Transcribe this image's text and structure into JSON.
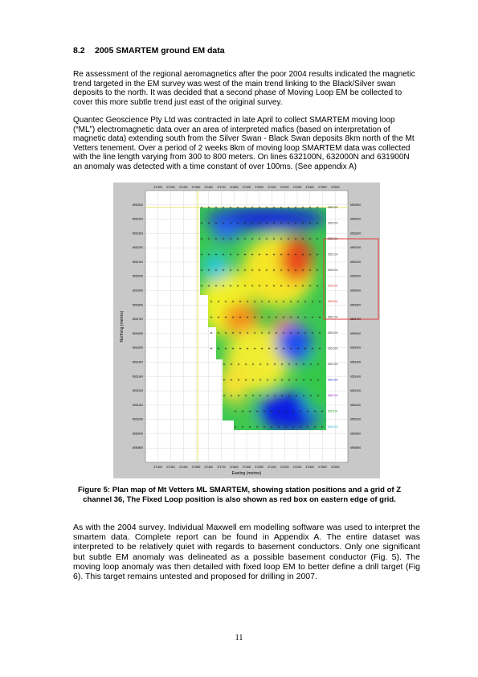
{
  "section": {
    "number": "8.2",
    "title": "2005 SMARTEM ground EM data"
  },
  "paragraphs": [
    "Re assessment of the regional aeromagnetics after the poor 2004 results indicated the magnetic trend targeted in the EM survey was west of the main trend linking to the Black/Silver swan deposits to the north.  It was decided that a second phase of Moving Loop EM be collected to cover this more subtle trend just east of the original survey.",
    "Quantec Geoscience Pty Ltd was contracted in late April to collect SMARTEM moving loop (“ML”) electromagnetic data  over an area of interpreted mafics (based on interpretation of magnetic data) extending south from the Silver Swan - Black Swan  deposits 8km north of the Mt Vetters tenement. Over a period of 2 weeks 8km of moving loop SMARTEM data was collected with the line length varying from 300 to 800 meters. On lines 632100N, 632000N and 631900N an anomaly was detected with a time constant of over 100ms. (See appendix A)",
    "As with the 2004 survey.  Individual Maxwell em modelling software was used to interpret the smartem data.  Complete report can be found in Appendix A.  The entire dataset was interpreted to be relatively quiet with regards to basement conductors. Only one significant but subtle EM anomaly was delineated as a possible basement conductor (Fig. 5).   The moving loop anomaly was then detailed with fixed loop EM to better define a drill target (Fig 6).  This target remains untested and proposed for drilling in 2007."
  ],
  "figure": {
    "caption": "Figure 5: Plan map of Mt Vetters ML SMARTEM, showing station positions and a grid of Z channel 36, The Fixed Loop position is also shown as red box on eastern edge of grid.",
    "xlabel": "Easting (metres)",
    "ylabel": "Northing (metres)",
    "x_ticks": [
      "371200",
      "371300",
      "371400",
      "371500",
      "371600",
      "371700",
      "371800",
      "371900",
      "372000",
      "372100",
      "372200",
      "372300",
      "372400",
      "372500",
      "372600"
    ],
    "y_ticks": [
      "6552500",
      "6552400",
      "6552300",
      "6552200",
      "6552100",
      "6552000",
      "6551900",
      "6551800",
      "6551700",
      "6551600",
      "6551500",
      "6551400",
      "6551300",
      "6551200",
      "6551100",
      "6551000",
      "6550900",
      "6550800"
    ],
    "line_labels": [
      "6552400",
      "6552300",
      "6552200",
      "6552100",
      "6552000",
      "6551900",
      "6551800",
      "6551700",
      "6551600",
      "6551500",
      "6551400",
      "6551300",
      "6551200",
      "6551100",
      "6551000"
    ],
    "colors": {
      "background": "#c8c8c8",
      "low": "#0a1ee6",
      "mid": "#f5f51e",
      "high": "#e63214",
      "fixed_loop": "#e03c3c",
      "guide_line": "#e6e664"
    }
  },
  "page_number": "11"
}
